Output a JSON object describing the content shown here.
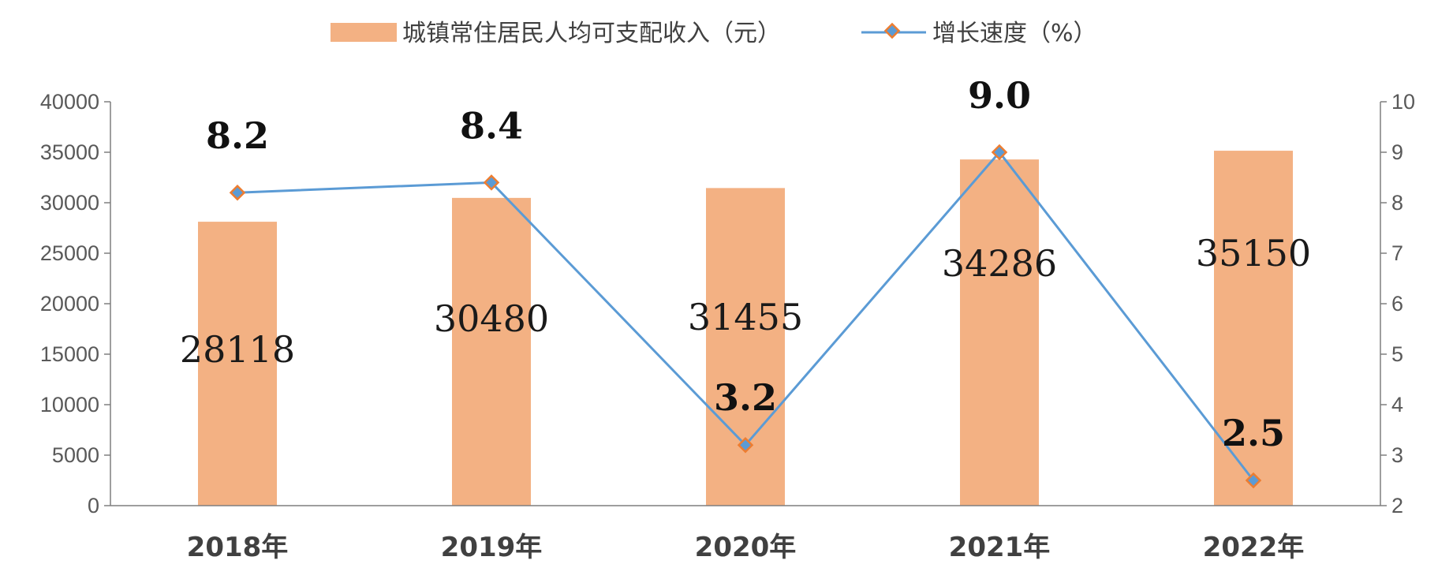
{
  "chart_data": {
    "type": "bar",
    "categories": [
      "2018年",
      "2019年",
      "2020年",
      "2021年",
      "2022年"
    ],
    "series": [
      {
        "name": "城镇常住居民人均可支配收入（元）",
        "type": "bar",
        "axis": "left",
        "values": [
          28118,
          30480,
          31455,
          34286,
          35150
        ],
        "value_labels": [
          "28118",
          "30480",
          "31455",
          "34286",
          "35150"
        ],
        "color": "#F3B183"
      },
      {
        "name": "增长速度（%）",
        "type": "line",
        "axis": "right",
        "values": [
          8.2,
          8.4,
          3.2,
          9.0,
          2.5
        ],
        "value_labels": [
          "8.2",
          "8.4",
          "3.2",
          "9.0",
          "2.5"
        ],
        "color": "#5B9BD5",
        "marker_color": "#ED7D31"
      }
    ],
    "y_left": {
      "ylim": [
        0,
        40000
      ],
      "ticks": [
        0,
        5000,
        10000,
        15000,
        20000,
        25000,
        30000,
        35000,
        40000
      ],
      "tick_labels": [
        "0",
        "5000",
        "10000",
        "15000",
        "20000",
        "25000",
        "30000",
        "35000",
        "40000"
      ]
    },
    "y_right": {
      "ylim": [
        2,
        10
      ],
      "ticks": [
        2,
        3,
        4,
        5,
        6,
        7,
        8,
        9,
        10
      ],
      "tick_labels": [
        "2",
        "3",
        "4",
        "5",
        "6",
        "7",
        "8",
        "9",
        "10"
      ]
    },
    "legend": {
      "position": "top",
      "entries": [
        "城镇常住居民人均可支配收入（元）",
        "增长速度（%）"
      ]
    },
    "grid": false,
    "title": "",
    "xlabel": "",
    "ylabel": ""
  }
}
